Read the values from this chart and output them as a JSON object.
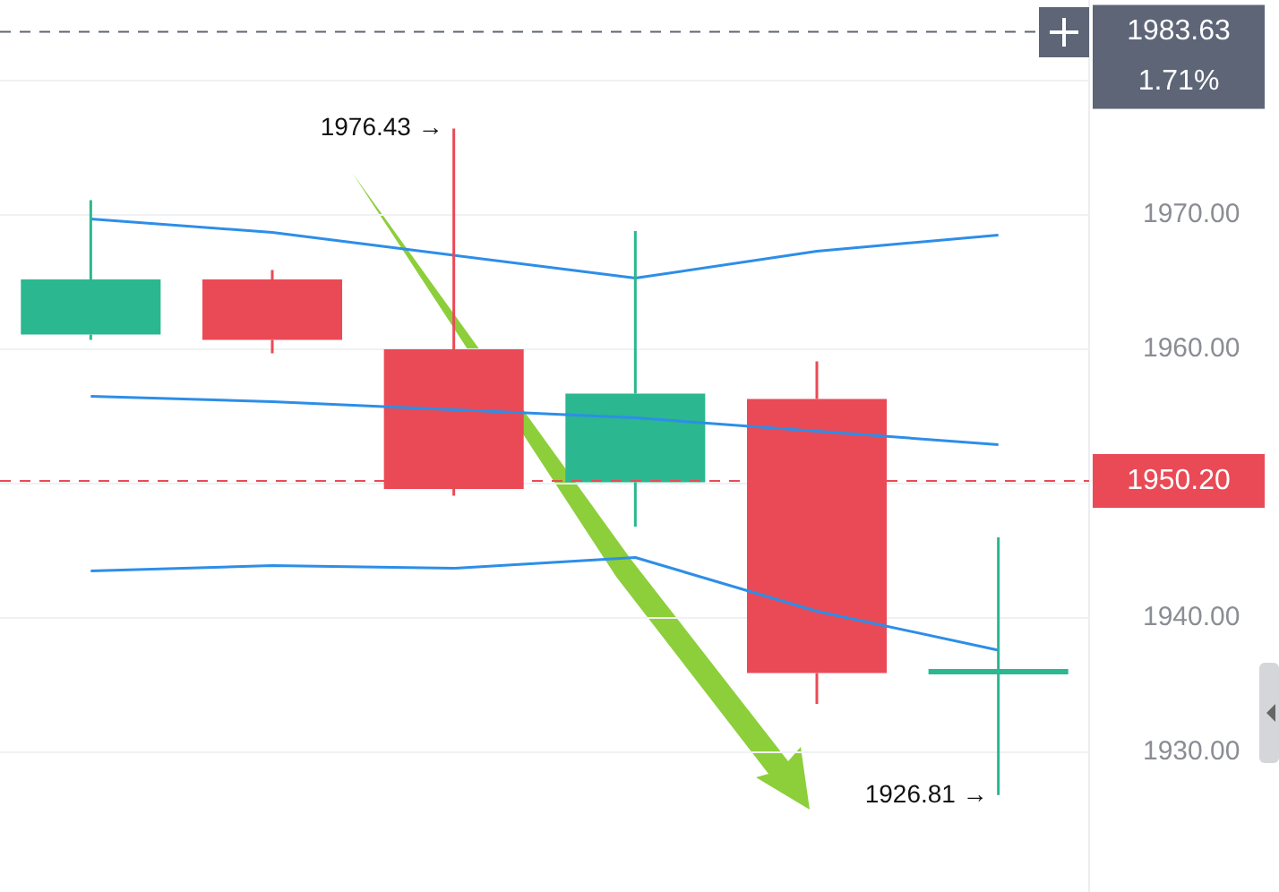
{
  "chart_data": {
    "type": "candlestick",
    "categories": [
      null,
      null,
      null,
      null,
      null,
      null
    ],
    "ohlc": [
      [
        1961.1,
        1971.1,
        1960.7,
        1965.2
      ],
      [
        1965.2,
        1965.9,
        1959.7,
        1960.7
      ],
      [
        1960.0,
        1976.43,
        1949.1,
        1949.6
      ],
      [
        1950.1,
        1968.8,
        1946.8,
        1956.7
      ],
      [
        1956.3,
        1959.1,
        1933.6,
        1935.9
      ],
      [
        1935.8,
        1946.0,
        1926.81,
        1936.0
      ]
    ],
    "colors": [
      "#2bb78f",
      "#ea4a56",
      "#ea4a56",
      "#2bb78f",
      "#ea4a56",
      "#2bb78f"
    ],
    "series": [
      {
        "type": "line",
        "color": "#2d8ee8",
        "values": [
          1969.7,
          1968.7,
          1967.0,
          1965.3,
          1967.3,
          1968.5
        ]
      },
      {
        "type": "line",
        "color": "#2d8ee8",
        "values": [
          1956.5,
          1956.1,
          1955.5,
          1954.9,
          1953.9,
          1952.9
        ]
      },
      {
        "type": "line",
        "color": "#2d8ee8",
        "values": [
          1943.5,
          1943.9,
          1943.7,
          1944.5,
          1940.5,
          1937.6
        ]
      }
    ],
    "ylim": [
      1919.6,
      1986.0
    ],
    "yticks": [
      {
        "value": 1930,
        "label": "1930.00"
      },
      {
        "value": 1940,
        "label": "1940.00"
      },
      {
        "value": 1950,
        "label": null
      },
      {
        "value": 1960,
        "label": "1960.00"
      },
      {
        "value": 1970,
        "label": "1970.00"
      },
      {
        "value": 1980,
        "label": null
      }
    ],
    "grid": "y",
    "ref_lines": [
      {
        "axis": "y",
        "value": 1950.2,
        "label": "1950.20",
        "color": "#ea4a56",
        "line_style": "dashed"
      },
      {
        "axis": "y",
        "value": 1983.63,
        "label": "1983.63",
        "color": "#5d6577",
        "line_style": "dashed"
      }
    ],
    "annotations": [
      "1976.43 →",
      "1926.81 →",
      "1.71%"
    ]
  }
}
